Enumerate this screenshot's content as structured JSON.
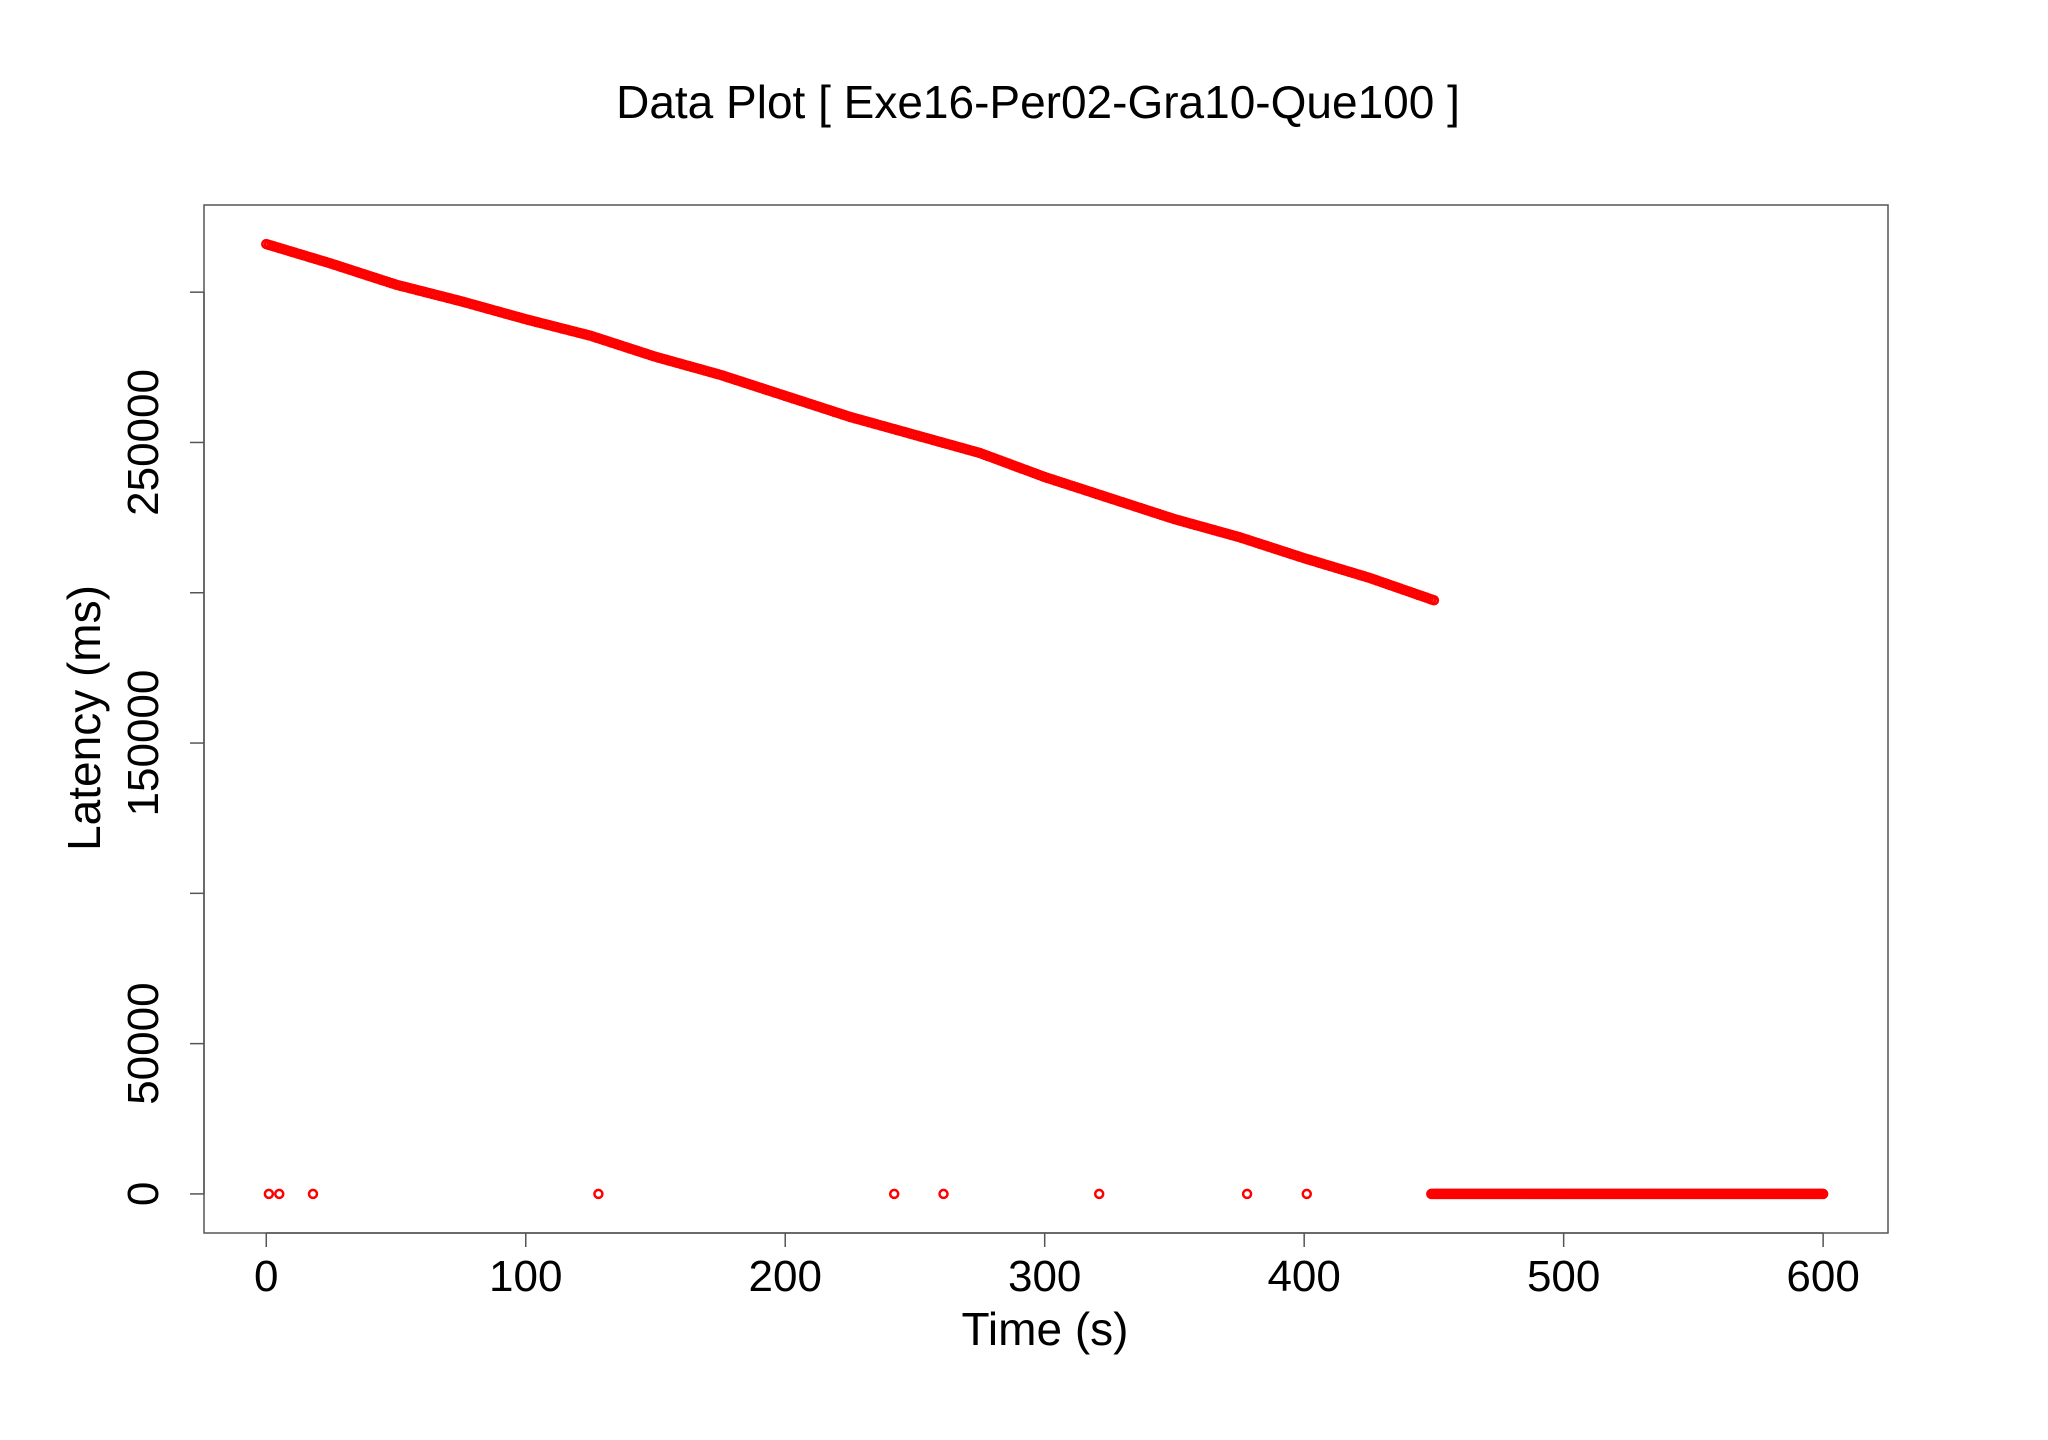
{
  "chart_data": {
    "type": "scatter",
    "title": "Data Plot [ Exe16-Per02-Gra10-Que100 ]",
    "xlabel": "Time (s)",
    "ylabel": "Latency (ms)",
    "xlim": [
      -24,
      625
    ],
    "ylim": [
      -13000,
      329000
    ],
    "x_ticks": [
      0,
      100,
      200,
      300,
      400,
      500,
      600
    ],
    "y_ticks": [
      0,
      50000,
      100000,
      150000,
      200000,
      250000,
      300000
    ],
    "y_tick_labels": [
      "0",
      "50000",
      "",
      "150000",
      "",
      "250000",
      ""
    ],
    "grid": false,
    "legend": "none",
    "marker_color": "#ff0000",
    "series": [
      {
        "segments": [
          {
            "kind": "trend",
            "x": [
              0,
              25,
              50,
              75,
              100,
              125,
              150,
              175,
              200,
              225,
              250,
              275,
              300,
              325,
              350,
              375,
              400,
              425,
              450
            ],
            "y": [
              316000,
              309500,
              302500,
              297000,
              291000,
              285500,
              278500,
              272500,
              265500,
              258500,
              252500,
              246500,
              238500,
              231500,
              224500,
              218500,
              211500,
              205000,
              197500
            ],
            "step": 1
          },
          {
            "kind": "flat",
            "x_start": 449,
            "x_end": 600,
            "y": 0,
            "step": 0.5
          }
        ],
        "outliers": {
          "x": [
            1,
            5,
            18,
            128,
            242,
            261,
            321,
            378,
            401
          ],
          "y": [
            0,
            0,
            0,
            0,
            0,
            0,
            0,
            0,
            0
          ]
        }
      }
    ]
  }
}
